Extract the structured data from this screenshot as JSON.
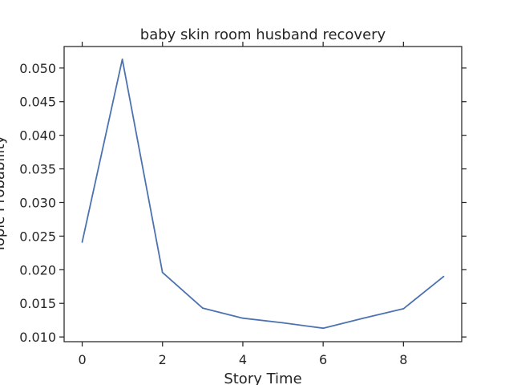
{
  "chart_data": {
    "type": "line",
    "title": "baby skin room husband recovery",
    "xlabel": "Story Time",
    "ylabel": "Topic Probability",
    "xlim": [
      -0.45,
      9.45
    ],
    "ylim": [
      0.0093,
      0.0532
    ],
    "x_ticks": [
      0,
      2,
      4,
      6,
      8
    ],
    "y_ticks": [
      0.01,
      0.015,
      0.02,
      0.025,
      0.03,
      0.035,
      0.04,
      0.045,
      0.05
    ],
    "grid": false,
    "series": [
      {
        "x": [
          0,
          1,
          2,
          3,
          4,
          5,
          6,
          7,
          8,
          9
        ],
        "values": [
          0.0241,
          0.0513,
          0.0196,
          0.0143,
          0.0128,
          0.0121,
          0.0113,
          0.0128,
          0.0142,
          0.019
        ],
        "color": "#4c72b0"
      }
    ]
  }
}
